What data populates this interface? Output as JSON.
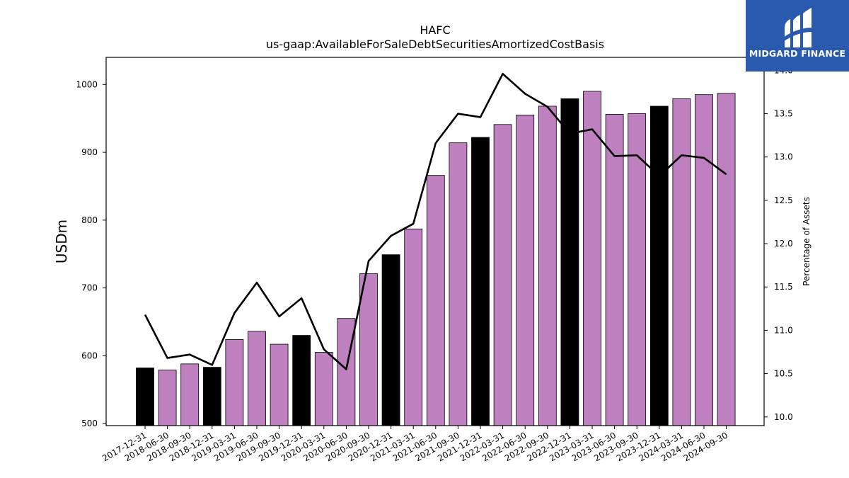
{
  "chart_data": {
    "type": "bar",
    "title": "HAFC",
    "subtitle": "us-gaap:AvailableForSaleDebtSecuritiesAmortizedCostBasis",
    "ylabel": "USDm",
    "ylabel_right": "Percentage of Assets",
    "ylim": [
      497,
      1040
    ],
    "ylim_right": [
      9.9,
      14.15
    ],
    "yticks": [
      500,
      600,
      700,
      800,
      900,
      1000
    ],
    "yticks_right": [
      10.0,
      10.5,
      11.0,
      11.5,
      12.0,
      12.5,
      13.0,
      13.5,
      14.0
    ],
    "yticks_right_labels": [
      "10.0",
      "10.5",
      "11.0",
      "11.5",
      "12.0",
      "12.5",
      "13.0",
      "13.5",
      "14.0"
    ],
    "categories": [
      "2017-12-31",
      "2018-06-30",
      "2018-09-30",
      "2018-12-31",
      "2019-03-31",
      "2019-06-30",
      "2019-09-30",
      "2019-12-31",
      "2020-03-31",
      "2020-06-30",
      "2020-09-30",
      "2020-12-31",
      "2021-03-31",
      "2021-06-30",
      "2021-09-30",
      "2021-12-31",
      "2022-03-31",
      "2022-06-30",
      "2022-09-30",
      "2022-12-31",
      "2023-03-31",
      "2023-06-30",
      "2023-09-30",
      "2023-12-31",
      "2024-03-31",
      "2024-06-30",
      "2024-09-30"
    ],
    "values": [
      582,
      579,
      588,
      583,
      624,
      636,
      617,
      630,
      605,
      655,
      721,
      749,
      787,
      866,
      914,
      922,
      941,
      955,
      968,
      979,
      990,
      956,
      957,
      968,
      979,
      985,
      987
    ],
    "bar_colors": [
      "#000000",
      "#bf80bf",
      "#bf80bf",
      "#000000",
      "#bf80bf",
      "#bf80bf",
      "#bf80bf",
      "#000000",
      "#bf80bf",
      "#bf80bf",
      "#bf80bf",
      "#000000",
      "#bf80bf",
      "#bf80bf",
      "#bf80bf",
      "#000000",
      "#bf80bf",
      "#bf80bf",
      "#bf80bf",
      "#000000",
      "#bf80bf",
      "#bf80bf",
      "#bf80bf",
      "#000000",
      "#bf80bf",
      "#bf80bf",
      "#bf80bf"
    ],
    "line_values": [
      11.18,
      10.68,
      10.72,
      10.6,
      11.2,
      11.55,
      11.16,
      11.37,
      10.78,
      10.55,
      11.8,
      12.09,
      12.23,
      13.16,
      13.5,
      13.46,
      13.96,
      13.73,
      13.58,
      13.27,
      13.32,
      13.01,
      13.02,
      12.78,
      13.02,
      12.99,
      12.8
    ],
    "colors": {
      "highlight": "#000000",
      "bar": "#bf80bf",
      "line": "#000000"
    },
    "grid": false,
    "legend": "none"
  },
  "logo": {
    "text": "MIDGARD FINANCE",
    "background": "#2a5aad"
  }
}
